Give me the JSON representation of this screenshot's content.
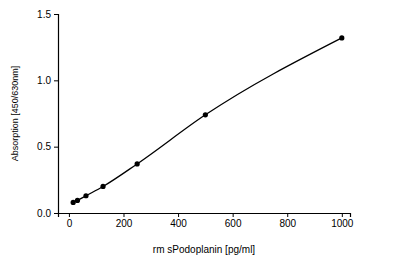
{
  "chart_data": {
    "type": "line",
    "x_label": "rm sPodoplanin [pg/ml]",
    "y_label": "Absorption [450/630nm]",
    "x": [
      15.6,
      31.25,
      62.5,
      125,
      250,
      500,
      1000
    ],
    "values": [
      0.08,
      0.095,
      0.13,
      0.2,
      0.37,
      0.74,
      1.32
    ],
    "color": "#000000",
    "marker": "circle",
    "line_style": "solid",
    "xlim": [
      -40,
      1030
    ],
    "ylim": [
      0,
      1.5
    ],
    "xticks": [
      0,
      200,
      400,
      600,
      800,
      1000
    ],
    "yticks": [
      {
        "value": 0,
        "label": "0.0"
      },
      {
        "value": 0.5,
        "label": "0.5"
      },
      {
        "value": 1,
        "label": "1.0"
      },
      {
        "value": 1.5,
        "label": "1.5"
      }
    ]
  }
}
